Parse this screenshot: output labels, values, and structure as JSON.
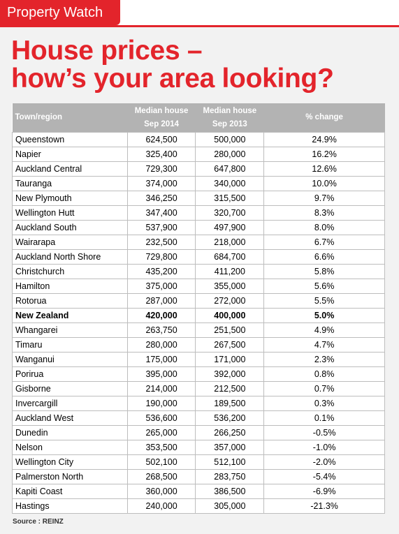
{
  "tag": "Property Watch",
  "headline": {
    "line1": "House prices –",
    "line2": "how’s your area looking?"
  },
  "table": {
    "headers": {
      "region": "Town/region",
      "y2014_a": "Median house",
      "y2014_b": "Sep 2014",
      "y2013_a": "Median house",
      "y2013_b": "Sep 2013",
      "change": "% change"
    },
    "rows": [
      [
        "Queenstown",
        "624,500",
        "500,000",
        "24.9%"
      ],
      [
        "Napier",
        "325,400",
        "280,000",
        "16.2%"
      ],
      [
        "Auckland Central",
        "729,300",
        "647,800",
        "12.6%"
      ],
      [
        "Tauranga",
        "374,000",
        "340,000",
        "10.0%"
      ],
      [
        "New Plymouth",
        "346,250",
        "315,500",
        "9.7%"
      ],
      [
        "Wellington Hutt",
        "347,400",
        "320,700",
        "8.3%"
      ],
      [
        "Auckland South",
        "537,900",
        "497,900",
        "8.0%"
      ],
      [
        "Wairarapa",
        "232,500",
        "218,000",
        "6.7%"
      ],
      [
        "Auckland North Shore",
        "729,800",
        "684,700",
        "6.6%"
      ],
      [
        "Christchurch",
        "435,200",
        "411,200",
        "5.8%"
      ],
      [
        "Hamilton",
        "375,000",
        "355,000",
        "5.6%"
      ],
      [
        "Rotorua",
        "287,000",
        "272,000",
        "5.5%"
      ],
      [
        "New Zealand",
        "420,000",
        "400,000",
        "5.0%"
      ],
      [
        "Whangarei",
        "263,750",
        "251,500",
        "4.9%"
      ],
      [
        "Timaru",
        "280,000",
        "267,500",
        "4.7%"
      ],
      [
        "Wanganui",
        "175,000",
        "171,000",
        "2.3%"
      ],
      [
        "Porirua",
        "395,000",
        "392,000",
        "0.8%"
      ],
      [
        "Gisborne",
        "214,000",
        "212,500",
        "0.7%"
      ],
      [
        "Invercargill",
        "190,000",
        "189,500",
        "0.3%"
      ],
      [
        "Auckland West",
        "536,600",
        "536,200",
        "0.1%"
      ],
      [
        "Dunedin",
        "265,000",
        "266,250",
        "-0.5%"
      ],
      [
        "Nelson",
        "353,500",
        "357,000",
        "-1.0%"
      ],
      [
        "Wellington City",
        "502,100",
        "512,100",
        "-2.0%"
      ],
      [
        "Palmerston North",
        "268,500",
        "283,750",
        "-5.4%"
      ],
      [
        "Kapiti Coast",
        "360,000",
        "386,500",
        "-6.9%"
      ],
      [
        "Hastings",
        "240,000",
        "305,000",
        "-21.3%"
      ]
    ],
    "bold_row": "New Zealand"
  },
  "source": "Source : REINZ",
  "colors": {
    "accent": "#e3242b",
    "header_bg": "#b3b3b3",
    "panel_bg": "#f2f2f2"
  }
}
